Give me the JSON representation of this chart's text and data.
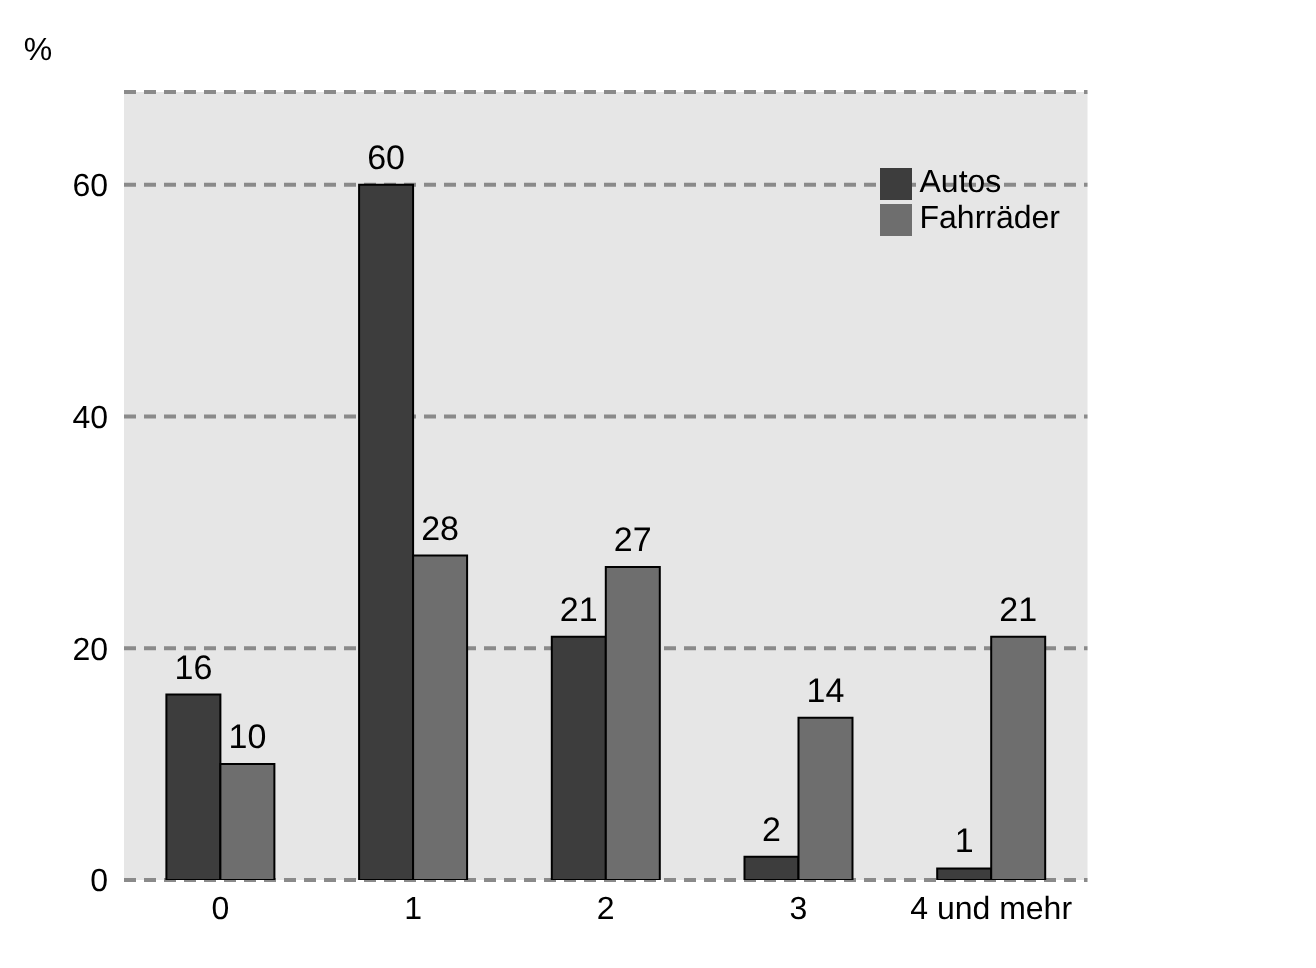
{
  "chart_data": {
    "type": "bar",
    "ylabel": "%",
    "categories": [
      "0",
      "1",
      "2",
      "3",
      "4 und mehr"
    ],
    "series": [
      {
        "name": "Autos",
        "color": "#3d3d3d",
        "values": [
          16,
          60,
          21,
          2,
          1
        ]
      },
      {
        "name": "Fahrräder",
        "color": "#6e6e6e",
        "values": [
          10,
          28,
          27,
          14,
          21
        ]
      }
    ],
    "ylim": [
      0,
      68
    ],
    "yticks": [
      0,
      20,
      40,
      60
    ],
    "grid": "y",
    "legend": "top right",
    "data_labels": true
  }
}
